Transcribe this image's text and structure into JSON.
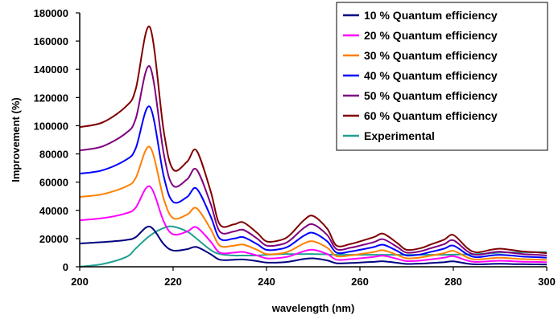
{
  "chart_data": {
    "type": "line",
    "xlabel": "wavelength (nm)",
    "ylabel": "Improvement (%)",
    "xlim": [
      200,
      300
    ],
    "ylim": [
      0,
      180000
    ],
    "xticks": [
      200,
      220,
      240,
      260,
      280,
      300
    ],
    "yticks": [
      0,
      20000,
      40000,
      60000,
      80000,
      100000,
      120000,
      140000,
      160000,
      180000
    ],
    "grid": false,
    "legend_position": "top-right",
    "x": [
      200,
      205,
      210,
      212,
      215,
      218,
      220,
      223,
      225,
      228,
      230,
      233,
      235,
      238,
      240,
      243,
      245,
      248,
      250,
      253,
      255,
      258,
      260,
      263,
      265,
      268,
      270,
      273,
      275,
      278,
      280,
      283,
      285,
      288,
      290,
      293,
      295,
      298,
      300
    ],
    "series": [
      {
        "name": "10 % Quantum efficiency",
        "color": "#000080",
        "values": [
          16500,
          17500,
          19000,
          21000,
          28500,
          16000,
          11500,
          12500,
          14000,
          9000,
          5000,
          5000,
          5200,
          4000,
          3000,
          3100,
          3700,
          5500,
          6000,
          4500,
          2500,
          2700,
          3000,
          3500,
          3900,
          2800,
          2000,
          2200,
          2600,
          3200,
          3800,
          2200,
          1700,
          2000,
          2100,
          1900,
          1800,
          1700,
          1600
        ]
      },
      {
        "name": "20 % Quantum efficiency",
        "color": "#ff00ff",
        "values": [
          33000,
          34500,
          38000,
          42000,
          57000,
          32000,
          23000,
          25000,
          28000,
          18000,
          10000,
          10000,
          10500,
          8000,
          6000,
          6300,
          7500,
          11000,
          12000,
          9000,
          5000,
          5400,
          6000,
          7000,
          7800,
          5600,
          4000,
          4400,
          5200,
          6400,
          7500,
          4400,
          3400,
          4000,
          4300,
          3900,
          3600,
          3400,
          3200
        ]
      },
      {
        "name": "30 % Quantum efficiency",
        "color": "#ff8000",
        "values": [
          49500,
          51500,
          57000,
          63000,
          85000,
          48000,
          34500,
          37000,
          41500,
          27000,
          15000,
          15000,
          15700,
          12000,
          9000,
          9400,
          11200,
          16500,
          18000,
          13500,
          7500,
          8100,
          9000,
          10500,
          11700,
          8400,
          6000,
          6600,
          7800,
          9600,
          11300,
          6600,
          5100,
          6000,
          6400,
          5800,
          5400,
          5100,
          4800
        ]
      },
      {
        "name": "40 % Quantum efficiency",
        "color": "#0000ff",
        "values": [
          66000,
          68500,
          76000,
          84000,
          113500,
          64000,
          46000,
          49500,
          55500,
          36000,
          20000,
          20000,
          21000,
          16000,
          12000,
          12600,
          15000,
          22000,
          24000,
          18000,
          10000,
          10800,
          12000,
          14000,
          15600,
          11200,
          8000,
          8800,
          10400,
          12800,
          15000,
          8800,
          6800,
          8000,
          8500,
          7800,
          7200,
          6800,
          6400
        ]
      },
      {
        "name": "50 % Quantum efficiency",
        "color": "#800080",
        "values": [
          82500,
          85500,
          95000,
          105000,
          142000,
          80000,
          57500,
          62000,
          69000,
          45000,
          25000,
          25000,
          26200,
          20000,
          15000,
          15700,
          18700,
          27500,
          30000,
          22500,
          12500,
          13500,
          15000,
          17500,
          19500,
          14000,
          10000,
          11000,
          13000,
          16000,
          18800,
          11000,
          8500,
          10000,
          10700,
          9700,
          9000,
          8500,
          8000
        ]
      },
      {
        "name": "60 % Quantum efficiency",
        "color": "#800000",
        "values": [
          99000,
          102500,
          114000,
          126000,
          170000,
          96000,
          69000,
          74500,
          82500,
          54000,
          30000,
          30000,
          31500,
          24000,
          18000,
          18900,
          22500,
          33000,
          36000,
          27000,
          15000,
          16200,
          18000,
          21000,
          23400,
          16800,
          12000,
          13200,
          15600,
          19200,
          22500,
          13200,
          10200,
          12000,
          12800,
          11700,
          10800,
          10200,
          9600
        ]
      },
      {
        "name": "Experimental",
        "color": "#20a090",
        "values": [
          0,
          2000,
          7000,
          13000,
          22000,
          27500,
          28500,
          25000,
          20000,
          12000,
          9000,
          8000,
          8000,
          8000,
          8500,
          9000,
          9000,
          9000,
          9000,
          8800,
          8500,
          8500,
          8500,
          8500,
          8500,
          8500,
          8500,
          8500,
          8500,
          8500,
          8600,
          8800,
          9000,
          9500,
          10000,
          10200,
          10300,
          10400,
          10500
        ]
      }
    ]
  }
}
